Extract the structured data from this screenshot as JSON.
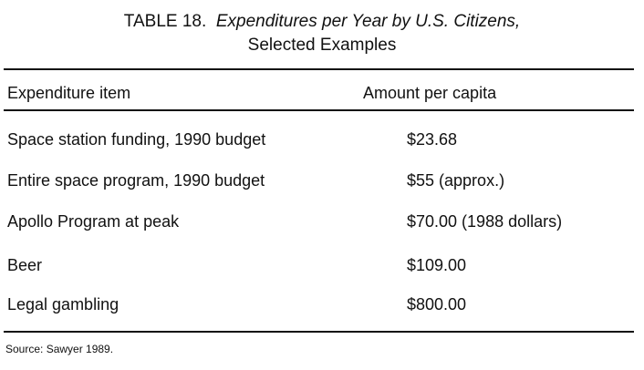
{
  "table": {
    "caption": {
      "label": "TABLE 18.",
      "title_line1": "Expenditures per Year by U.S. Citizens,",
      "title_line2": "Selected Examples"
    },
    "columns": [
      "Expenditure item",
      "Amount per capita"
    ],
    "rows": [
      {
        "item": "Space station funding, 1990 budget",
        "amount": "$23.68"
      },
      {
        "item": "Entire space program, 1990 budget",
        "amount": "$55 (approx.)"
      },
      {
        "item": "Apollo Program at peak",
        "amount": "$70.00 (1988 dollars)"
      },
      {
        "item": "Beer",
        "amount": "$109.00"
      },
      {
        "item": "Legal gambling",
        "amount": "$800.00"
      }
    ],
    "source": "Source: Sawyer 1989."
  }
}
